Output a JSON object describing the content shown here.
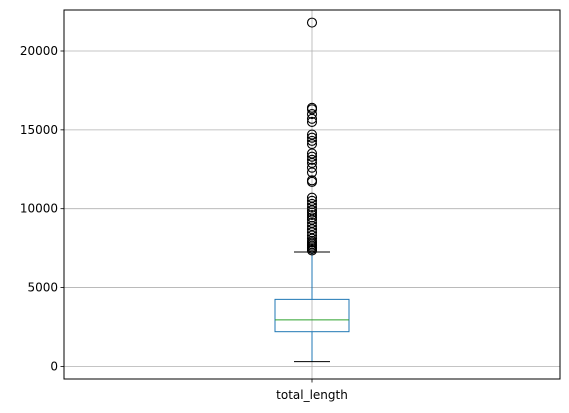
{
  "chart_data": {
    "type": "boxplot",
    "title": "",
    "xlabel": "",
    "ylabel": "",
    "grid": true,
    "ylim": [
      -800,
      22600
    ],
    "y_ticks": [
      0,
      5000,
      10000,
      15000,
      20000
    ],
    "categories": [
      "total_length"
    ],
    "boxes": [
      {
        "label": "total_length",
        "whisker_low": 300,
        "q1": 2200,
        "median": 2950,
        "q3": 4250,
        "whisker_high": 7250,
        "fliers": [
          7350,
          7450,
          7550,
          7650,
          7750,
          7850,
          7950,
          8100,
          8300,
          8500,
          8700,
          8900,
          9100,
          9300,
          9450,
          9600,
          9750,
          9900,
          10100,
          10300,
          10500,
          10700,
          11700,
          11800,
          12300,
          12600,
          12900,
          13100,
          13300,
          13500,
          14100,
          14300,
          14500,
          14700,
          15500,
          15700,
          16000,
          16300,
          16400,
          21800
        ]
      }
    ],
    "colors": {
      "box": "#1f77b4",
      "median": "#2ca02c",
      "whisker_cap": "#000000",
      "flier": "#000000",
      "grid": "#b0b0b0"
    }
  }
}
